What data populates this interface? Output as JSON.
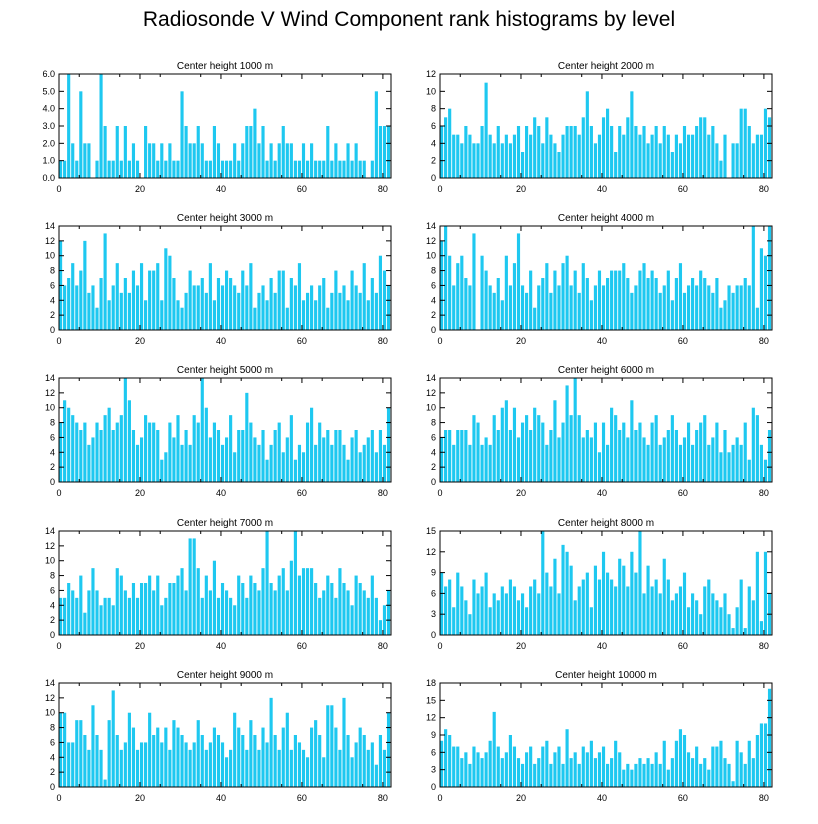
{
  "page": {
    "title": "Radiosonde V Wind Component rank histograms by level"
  },
  "colors": {
    "bar": "#1ec8f0",
    "axis": "#000000"
  },
  "chart_data": [
    {
      "type": "bar",
      "title": "Center height 1000 m",
      "xlim": [
        0,
        82
      ],
      "ylim": [
        0,
        6
      ],
      "xticks": [
        0,
        20,
        40,
        60,
        80
      ],
      "yticks": [
        "0.0",
        "1.0",
        "2.0",
        "3.0",
        "4.0",
        "5.0",
        "6.0"
      ],
      "values": [
        1,
        1,
        6,
        2,
        1,
        5,
        2,
        2,
        0,
        1,
        6,
        3,
        1,
        1,
        3,
        1,
        3,
        1,
        2,
        1,
        0,
        3,
        2,
        2,
        1,
        2,
        1,
        2,
        1,
        1,
        5,
        3,
        2,
        2,
        3,
        2,
        1,
        1,
        3,
        2,
        1,
        1,
        1,
        2,
        1,
        2,
        3,
        3,
        4,
        2,
        3,
        1,
        2,
        1,
        2,
        3,
        2,
        2,
        1,
        1,
        2,
        1,
        2,
        1,
        1,
        1,
        3,
        1,
        2,
        1,
        1,
        2,
        1,
        2,
        1,
        1,
        0,
        1,
        5,
        3,
        3,
        3
      ]
    },
    {
      "type": "bar",
      "title": "Center height 2000 m",
      "xlim": [
        0,
        82
      ],
      "ylim": [
        0,
        12
      ],
      "xticks": [
        0,
        20,
        40,
        60,
        80
      ],
      "yticks": [
        "0",
        "2",
        "4",
        "6",
        "8",
        "10",
        "12"
      ],
      "values": [
        6,
        7,
        8,
        5,
        5,
        4,
        6,
        5,
        4,
        4,
        6,
        11,
        5,
        4,
        6,
        4,
        5,
        4,
        5,
        6,
        3,
        6,
        5,
        7,
        6,
        4,
        7,
        5,
        4,
        3,
        5,
        6,
        6,
        6,
        5,
        7,
        10,
        6,
        4,
        5,
        7,
        8,
        6,
        3,
        6,
        5,
        7,
        10,
        6,
        5,
        6,
        4,
        5,
        6,
        4,
        6,
        5,
        3,
        5,
        4,
        6,
        5,
        5,
        6,
        7,
        7,
        5,
        6,
        4,
        2,
        5,
        0,
        4,
        4,
        8,
        8,
        6,
        4,
        5,
        5,
        8,
        7
      ]
    },
    {
      "type": "bar",
      "title": "Center height 3000 m",
      "xlim": [
        0,
        82
      ],
      "ylim": [
        0,
        14
      ],
      "xticks": [
        0,
        20,
        40,
        60,
        80
      ],
      "yticks": [
        "0",
        "2",
        "4",
        "6",
        "8",
        "10",
        "12",
        "14"
      ],
      "values": [
        12,
        6,
        7,
        9,
        6,
        8,
        12,
        5,
        6,
        3,
        7,
        13,
        4,
        6,
        9,
        5,
        7,
        5,
        8,
        6,
        9,
        4,
        8,
        8,
        9,
        4,
        11,
        10,
        7,
        4,
        3,
        5,
        8,
        6,
        6,
        7,
        5,
        9,
        4,
        7,
        6,
        8,
        7,
        6,
        5,
        8,
        6,
        9,
        3,
        5,
        6,
        4,
        7,
        5,
        8,
        8,
        3,
        7,
        6,
        9,
        4,
        5,
        6,
        4,
        6,
        7,
        3,
        5,
        8,
        5,
        6,
        4,
        8,
        6,
        5,
        9,
        4,
        7,
        5,
        10,
        8,
        6
      ]
    },
    {
      "type": "bar",
      "title": "Center height 4000 m",
      "xlim": [
        0,
        82
      ],
      "ylim": [
        0,
        14
      ],
      "xticks": [
        0,
        20,
        40,
        60,
        80
      ],
      "yticks": [
        "0",
        "2",
        "4",
        "6",
        "8",
        "10",
        "12",
        "14"
      ],
      "values": [
        12,
        14,
        10,
        6,
        9,
        10,
        7,
        6,
        13,
        0,
        10,
        8,
        6,
        5,
        7,
        4,
        10,
        6,
        9,
        13,
        6,
        5,
        8,
        3,
        6,
        7,
        9,
        5,
        8,
        6,
        9,
        10,
        6,
        8,
        5,
        9,
        7,
        4,
        6,
        8,
        6,
        7,
        8,
        8,
        8,
        9,
        7,
        5,
        6,
        8,
        9,
        7,
        8,
        7,
        5,
        6,
        8,
        4,
        7,
        9,
        5,
        6,
        7,
        6,
        8,
        7,
        6,
        5,
        7,
        3,
        4,
        6,
        5,
        6,
        6,
        7,
        6,
        14,
        3,
        11,
        10,
        14
      ]
    },
    {
      "type": "bar",
      "title": "Center height 5000 m",
      "xlim": [
        0,
        82
      ],
      "ylim": [
        0,
        14
      ],
      "xticks": [
        0,
        20,
        40,
        60,
        80
      ],
      "yticks": [
        "0",
        "2",
        "4",
        "6",
        "8",
        "10",
        "12",
        "14"
      ],
      "values": [
        8,
        11,
        10,
        9,
        8,
        7,
        8,
        5,
        6,
        8,
        7,
        9,
        10,
        7,
        8,
        9,
        14,
        11,
        7,
        5,
        6,
        9,
        8,
        8,
        7,
        3,
        4,
        8,
        6,
        9,
        5,
        7,
        5,
        9,
        8,
        14,
        10,
        6,
        8,
        7,
        5,
        6,
        9,
        4,
        7,
        7,
        12,
        8,
        6,
        5,
        7,
        3,
        5,
        7,
        8,
        4,
        6,
        9,
        3,
        5,
        4,
        8,
        10,
        5,
        8,
        6,
        7,
        5,
        7,
        7,
        5,
        3,
        6,
        7,
        4,
        5,
        6,
        7,
        4,
        7,
        5,
        10
      ]
    },
    {
      "type": "bar",
      "title": "Center height 6000 m",
      "xlim": [
        0,
        82
      ],
      "ylim": [
        0,
        14
      ],
      "xticks": [
        0,
        20,
        40,
        60,
        80
      ],
      "yticks": [
        "0",
        "2",
        "4",
        "6",
        "8",
        "10",
        "12",
        "14"
      ],
      "values": [
        6,
        7,
        7,
        5,
        7,
        7,
        7,
        5,
        9,
        8,
        5,
        6,
        5,
        9,
        7,
        10,
        11,
        7,
        10,
        6,
        8,
        9,
        7,
        10,
        9,
        8,
        5,
        7,
        11,
        6,
        8,
        13,
        9,
        14,
        9,
        6,
        7,
        6,
        8,
        4,
        8,
        5,
        10,
        9,
        7,
        8,
        6,
        11,
        7,
        8,
        6,
        5,
        8,
        9,
        5,
        6,
        7,
        9,
        7,
        5,
        6,
        8,
        5,
        7,
        8,
        9,
        5,
        6,
        8,
        4,
        7,
        4,
        5,
        6,
        5,
        8,
        3,
        10,
        9,
        5,
        3,
        7
      ]
    },
    {
      "type": "bar",
      "title": "Center height 7000 m",
      "xlim": [
        0,
        82
      ],
      "ylim": [
        0,
        14
      ],
      "xticks": [
        0,
        20,
        40,
        60,
        80
      ],
      "yticks": [
        "0",
        "2",
        "4",
        "6",
        "8",
        "10",
        "12",
        "14"
      ],
      "values": [
        5,
        5,
        7,
        6,
        5,
        8,
        3,
        6,
        9,
        6,
        4,
        5,
        5,
        4,
        9,
        8,
        6,
        5,
        7,
        5,
        7,
        7,
        8,
        6,
        8,
        4,
        5,
        7,
        7,
        8,
        9,
        6,
        13,
        13,
        9,
        5,
        8,
        6,
        10,
        5,
        7,
        6,
        5,
        4,
        8,
        7,
        5,
        8,
        7,
        6,
        9,
        14,
        7,
        6,
        8,
        9,
        6,
        10,
        14,
        8,
        9,
        9,
        9,
        7,
        5,
        6,
        8,
        7,
        5,
        9,
        7,
        6,
        4,
        8,
        7,
        6,
        5,
        8,
        5,
        2,
        4,
        6
      ]
    },
    {
      "type": "bar",
      "title": "Center height 8000 m",
      "xlim": [
        0,
        82
      ],
      "ylim": [
        0,
        15
      ],
      "xticks": [
        0,
        20,
        40,
        60,
        80
      ],
      "yticks": [
        "0",
        "3",
        "6",
        "9",
        "12",
        "15"
      ],
      "values": [
        9,
        7,
        8,
        4,
        9,
        7,
        5,
        3,
        8,
        6,
        7,
        9,
        4,
        6,
        5,
        7,
        6,
        8,
        7,
        5,
        6,
        4,
        7,
        8,
        6,
        15,
        9,
        7,
        11,
        6,
        13,
        12,
        10,
        5,
        7,
        8,
        9,
        4,
        10,
        8,
        12,
        9,
        8,
        7,
        11,
        10,
        7,
        12,
        9,
        15,
        6,
        10,
        7,
        8,
        6,
        11,
        8,
        5,
        6,
        7,
        9,
        4,
        6,
        5,
        3,
        7,
        8,
        6,
        5,
        4,
        6,
        3,
        1,
        4,
        8,
        1,
        7,
        5,
        12,
        2,
        12,
        6
      ]
    },
    {
      "type": "bar",
      "title": "Center height 9000 m",
      "xlim": [
        0,
        82
      ],
      "ylim": [
        0,
        14
      ],
      "xticks": [
        0,
        20,
        40,
        60,
        80
      ],
      "yticks": [
        "0",
        "2",
        "4",
        "6",
        "8",
        "10",
        "12",
        "14"
      ],
      "values": [
        10,
        10,
        6,
        6,
        9,
        9,
        7,
        5,
        11,
        7,
        5,
        1,
        9,
        13,
        7,
        5,
        6,
        10,
        8,
        5,
        6,
        6,
        10,
        7,
        8,
        6,
        8,
        5,
        9,
        8,
        7,
        6,
        5,
        6,
        9,
        7,
        5,
        6,
        8,
        7,
        6,
        4,
        5,
        10,
        8,
        7,
        5,
        9,
        7,
        5,
        8,
        6,
        12,
        7,
        5,
        8,
        10,
        5,
        7,
        6,
        5,
        4,
        8,
        9,
        7,
        4,
        11,
        11,
        8,
        5,
        12,
        7,
        4,
        6,
        8,
        7,
        5,
        6,
        3,
        7,
        5,
        10
      ]
    },
    {
      "type": "bar",
      "title": "Center height 10000 m",
      "xlim": [
        0,
        82
      ],
      "ylim": [
        0,
        18
      ],
      "xticks": [
        0,
        20,
        40,
        60,
        80
      ],
      "yticks": [
        "0",
        "3",
        "6",
        "9",
        "12",
        "15",
        "18"
      ],
      "values": [
        8,
        10,
        9,
        7,
        7,
        5,
        6,
        4,
        7,
        6,
        5,
        6,
        8,
        13,
        7,
        5,
        6,
        9,
        7,
        5,
        4,
        6,
        7,
        4,
        5,
        7,
        8,
        4,
        6,
        7,
        4,
        10,
        5,
        6,
        4,
        7,
        6,
        8,
        5,
        6,
        7,
        4,
        5,
        8,
        6,
        3,
        4,
        3,
        4,
        5,
        4,
        5,
        4,
        6,
        4,
        8,
        3,
        5,
        8,
        10,
        9,
        6,
        5,
        7,
        4,
        5,
        3,
        7,
        7,
        8,
        5,
        4,
        1,
        8,
        6,
        4,
        8,
        5,
        9,
        11,
        11,
        17
      ]
    }
  ]
}
